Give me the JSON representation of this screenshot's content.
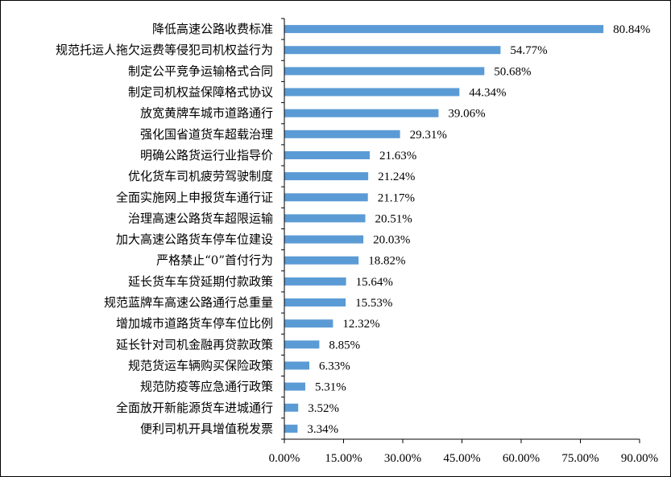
{
  "colors": {
    "bar": "#5b9bd5",
    "axis": "#000000",
    "text": "#000000",
    "border": "#000000"
  },
  "chart_data": {
    "type": "bar",
    "orientation": "horizontal",
    "title": "",
    "xlabel": "",
    "ylabel": "",
    "xlim": [
      0,
      90
    ],
    "xticks": [
      0,
      15,
      30,
      45,
      60,
      75,
      90
    ],
    "tick_labels": [
      "0.00%",
      "15.00%",
      "30.00%",
      "45.00%",
      "60.00%",
      "75.00%",
      "90.00%"
    ],
    "grid": false,
    "legend": "none",
    "categories": [
      "降低高速公路收费标准",
      "规范托运人拖欠运费等侵犯司机权益行为",
      "制定公平竞争运输格式合同",
      "制定司机权益保障格式协议",
      "放宽黄牌车城市道路通行",
      "强化国省道货车超载治理",
      "明确公路货运行业指导价",
      "优化货车司机疲劳驾驶制度",
      "全面实施网上申报货车通行证",
      "治理高速公路货车超限运输",
      "加大高速公路货车停车位建设",
      "严格禁止“0”首付行为",
      "延长货车车贷延期付款政策",
      "规范蓝牌车高速公路通行总重量",
      "增加城市道路货车停车位比例",
      "延长针对司机金融再贷款政策",
      "规范货运车辆购买保险政策",
      "规范防疫等应急通行政策",
      "全面放开新能源货车进城通行",
      "便利司机开具增值税发票"
    ],
    "values": [
      80.84,
      54.77,
      50.68,
      44.34,
      39.06,
      29.31,
      21.63,
      21.24,
      21.17,
      20.51,
      20.03,
      18.82,
      15.64,
      15.53,
      12.32,
      8.85,
      6.33,
      5.31,
      3.52,
      3.34
    ],
    "value_labels": [
      "80.84%",
      "54.77%",
      "50.68%",
      "44.34%",
      "39.06%",
      "29.31%",
      "21.63%",
      "21.24%",
      "21.17%",
      "20.51%",
      "20.03%",
      "18.82%",
      "15.64%",
      "15.53%",
      "12.32%",
      "8.85%",
      "6.33%",
      "5.31%",
      "3.52%",
      "3.34%"
    ]
  }
}
